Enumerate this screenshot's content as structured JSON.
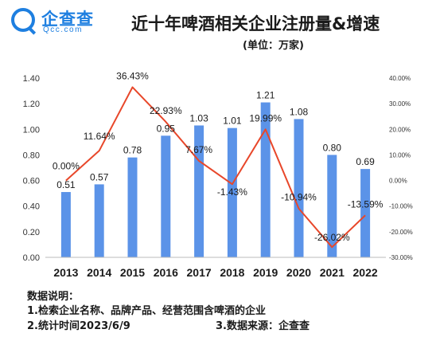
{
  "brand": {
    "name": "企查查",
    "sub": "Qcc.com"
  },
  "notes": {
    "heading": "数据说明：",
    "line1": "1.检索企业名称、品牌产品、经营范围含啤酒的企业",
    "line2": "2.统计时间2023/6/9",
    "line3": "3.数据来源：企查查"
  },
  "colors": {
    "bar": "#5b93e8",
    "line": "#e8472a"
  },
  "chart_data": {
    "type": "bar",
    "title": "近十年啤酒相关企业注册量&增速",
    "subtitle": "(单位：万家)",
    "categories": [
      "2013",
      "2014",
      "2015",
      "2016",
      "2017",
      "2018",
      "2019",
      "2020",
      "2021",
      "2022"
    ],
    "series": [
      {
        "values": [
          0.51,
          0.57,
          0.78,
          0.95,
          1.03,
          1.01,
          1.21,
          1.08,
          0.8,
          0.69
        ],
        "labels": [
          "0.51",
          "0.57",
          "0.78",
          "0.95",
          "1.03",
          "1.01",
          "1.21",
          "1.08",
          "0.80",
          "0.69"
        ]
      },
      {
        "type": "line",
        "axis": "right",
        "values": [
          0.0,
          11.64,
          36.43,
          22.93,
          7.67,
          -1.43,
          19.99,
          -10.94,
          -26.02,
          -13.59
        ],
        "labels": [
          "0.00%",
          "11.64%",
          "36.43%",
          "22.93%",
          "7.67%",
          "-1.43%",
          "19.99%",
          "-10.94%",
          "-26.02%",
          "-13.59%"
        ]
      }
    ],
    "ylim": [
      0,
      1.4
    ],
    "yticks": [
      "0.00",
      "0.20",
      "0.40",
      "0.60",
      "0.80",
      "1.00",
      "1.20",
      "1.40"
    ],
    "y2lim": [
      -30,
      40
    ],
    "y2ticks": [
      "40.00%",
      "30.00%",
      "20.00%",
      "10.00%",
      "0.00%",
      "-10.00%",
      "-20.00%",
      "-30.00%"
    ],
    "grid": false,
    "legend": "none"
  }
}
